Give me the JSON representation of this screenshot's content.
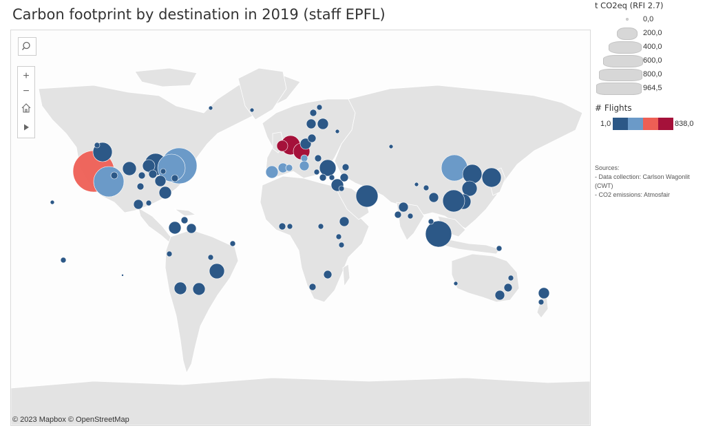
{
  "title": "Carbon footprint by destination in 2019 (staff EPFL)",
  "map": {
    "attribution": "© 2023 Mapbox  © OpenStreetMap",
    "controls": {
      "search_icon": "search-icon",
      "zoom_in": "+",
      "zoom_out": "−",
      "home_icon": "home-icon",
      "play_icon": "play-icon"
    }
  },
  "legend": {
    "size_title": "t CO2eq (RFI 2.7)",
    "size_items": [
      "0,0",
      "200,0",
      "400,0",
      "600,0",
      "800,0",
      "964,5"
    ],
    "color_title": "# Flights",
    "color_min": "1,0",
    "color_max": "838,0",
    "colors": [
      "#2c5887",
      "#6b9ac8",
      "#ee5f55",
      "#a5113a"
    ]
  },
  "sources": {
    "heading": "Sources:",
    "lines": [
      "- Data collection: Carlson Wagonlit (CWT)",
      "- CO2 emissions: Atmosfair"
    ]
  },
  "colors": {
    "land": "#e3e3e3",
    "border": "#ffffff",
    "water": "#fdfdfd",
    "low": "#2c5887",
    "mid": "#6b9ac8",
    "high": "#ee5f55",
    "top": "#a5113a"
  }
}
